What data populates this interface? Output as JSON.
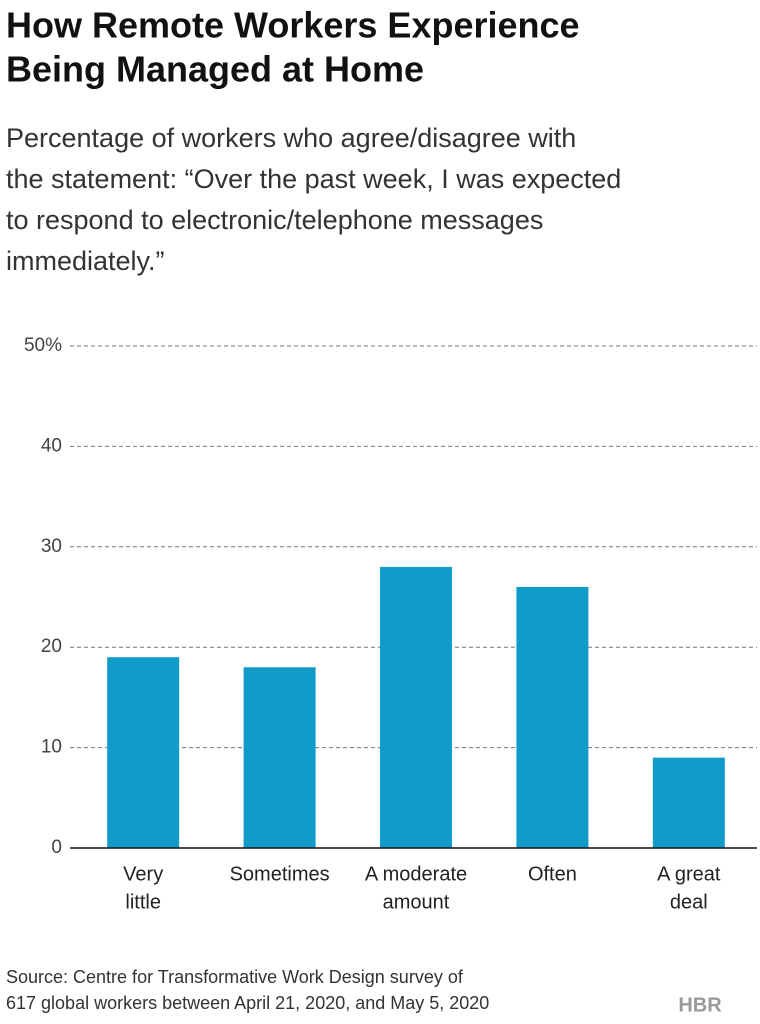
{
  "chart_data": {
    "type": "bar",
    "title": [
      "How Remote Workers Experience",
      "Being Managed at Home"
    ],
    "subtitle": [
      "Percentage of workers who agree/disagree with",
      "the statement: “Over the past week, I was expected",
      "to respond to electronic/telephone messages",
      "immediately.”"
    ],
    "categories": [
      [
        "Very",
        "little"
      ],
      [
        "Sometimes"
      ],
      [
        "A moderate",
        "amount"
      ],
      [
        "Often"
      ],
      [
        "A great",
        "deal"
      ]
    ],
    "values": [
      19,
      18,
      28,
      26,
      9
    ],
    "color": "#109bc9",
    "ylim": [
      0,
      50
    ],
    "yticks": [
      0,
      10,
      20,
      30,
      40,
      {
        "value": 50,
        "label": "50%"
      }
    ],
    "grid": true,
    "source": [
      "Source: Centre for Transformative Work Design survey of",
      "617 global workers between April 21, 2020, and May 5, 2020"
    ],
    "logo": "HBR"
  }
}
